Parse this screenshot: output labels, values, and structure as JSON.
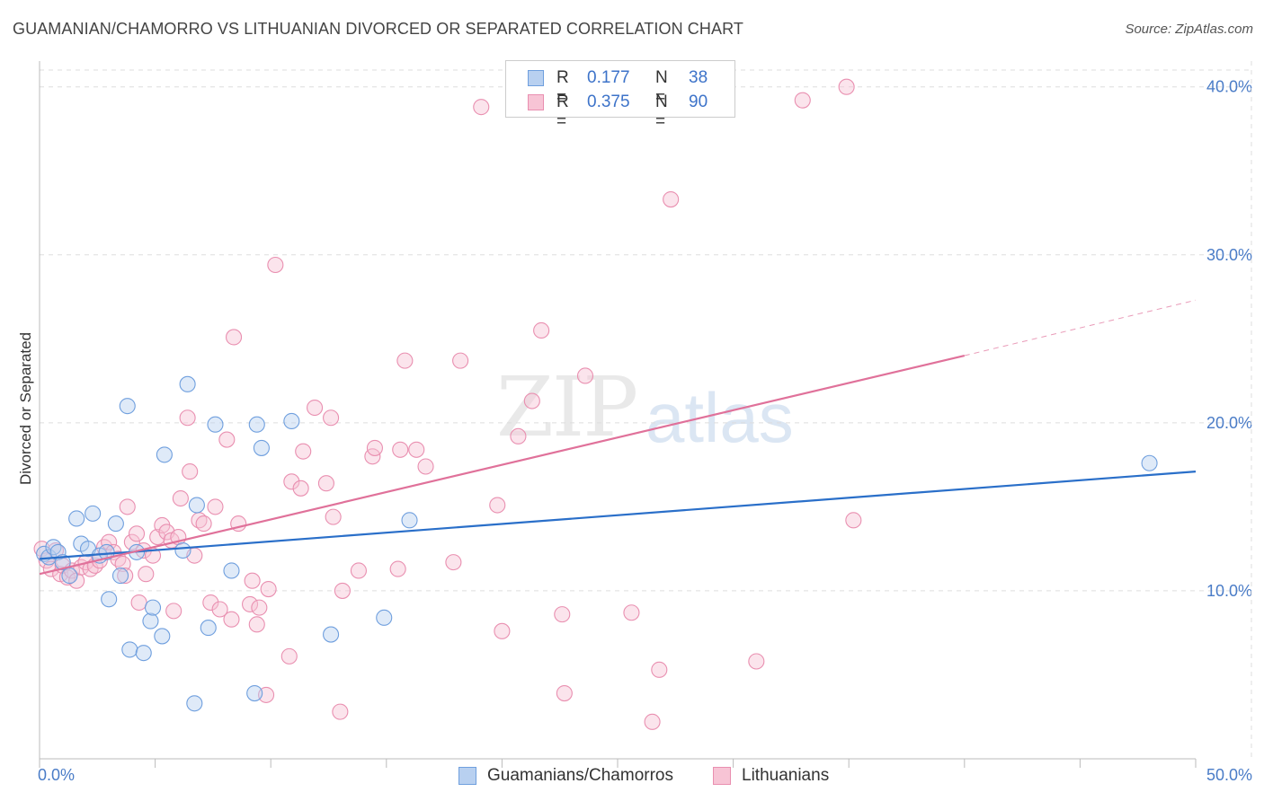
{
  "title": "GUAMANIAN/CHAMORRO VS LITHUANIAN DIVORCED OR SEPARATED CORRELATION CHART",
  "source": "Source: ZipAtlas.com",
  "watermark": {
    "zip": "ZIP",
    "atlas": "atlas"
  },
  "legend": {
    "rows": [
      {
        "r_label": "R =",
        "r_value": "0.177",
        "n_label": "N =",
        "n_value": "38"
      },
      {
        "r_label": "R =",
        "r_value": "0.375",
        "n_label": "N =",
        "n_value": "90"
      }
    ]
  },
  "bottom_legend": {
    "series1": "Guamanians/Chamorros",
    "series2": "Lithuanians"
  },
  "colors": {
    "blue_fill": "#b8d0f0",
    "blue_stroke": "#6f9fde",
    "blue_line": "#2a6fc9",
    "pink_fill": "#f7c4d5",
    "pink_stroke": "#e98fb0",
    "pink_line": "#e0719a",
    "tick_text": "#4a7cc7",
    "grid": "#dddddd"
  },
  "chart_data": {
    "type": "scatter",
    "title": "GUAMANIAN/CHAMORRO VS LITHUANIAN DIVORCED OR SEPARATED CORRELATION CHART",
    "xlabel": "",
    "ylabel": "Divorced or Separated",
    "xlim": [
      0,
      50
    ],
    "ylim": [
      0,
      41
    ],
    "x_tick_labels": [
      "0.0%",
      "50.0%"
    ],
    "y_ticks": [
      10,
      20,
      30,
      40
    ],
    "y_tick_labels": [
      "10.0%",
      "20.0%",
      "30.0%",
      "40.0%"
    ],
    "grid": true,
    "series": [
      {
        "name": "Guamanians/Chamorros",
        "R": 0.177,
        "N": 38,
        "trend": {
          "x0": 0,
          "y0": 11.9,
          "x1": 50,
          "y1": 17.1
        },
        "points": [
          [
            0.2,
            12.2
          ],
          [
            0.4,
            12.0
          ],
          [
            0.6,
            12.6
          ],
          [
            0.8,
            12.3
          ],
          [
            1.0,
            11.7
          ],
          [
            1.3,
            10.9
          ],
          [
            1.6,
            14.3
          ],
          [
            1.8,
            12.8
          ],
          [
            2.1,
            12.5
          ],
          [
            2.3,
            14.6
          ],
          [
            2.6,
            12.1
          ],
          [
            2.9,
            12.3
          ],
          [
            3.0,
            9.5
          ],
          [
            3.3,
            14.0
          ],
          [
            3.5,
            10.9
          ],
          [
            3.8,
            21.0
          ],
          [
            3.9,
            6.5
          ],
          [
            4.2,
            12.3
          ],
          [
            4.5,
            6.3
          ],
          [
            4.8,
            8.2
          ],
          [
            4.9,
            9.0
          ],
          [
            5.3,
            7.3
          ],
          [
            5.4,
            18.1
          ],
          [
            6.2,
            12.4
          ],
          [
            6.4,
            22.3
          ],
          [
            6.7,
            3.3
          ],
          [
            6.8,
            15.1
          ],
          [
            7.3,
            7.8
          ],
          [
            7.6,
            19.9
          ],
          [
            8.3,
            11.2
          ],
          [
            9.3,
            3.9
          ],
          [
            9.4,
            19.9
          ],
          [
            9.6,
            18.5
          ],
          [
            10.9,
            20.1
          ],
          [
            12.6,
            7.4
          ],
          [
            14.9,
            8.4
          ],
          [
            16.0,
            14.2
          ],
          [
            48.0,
            17.6
          ]
        ]
      },
      {
        "name": "Lithuanians",
        "R": 0.375,
        "N": 90,
        "trend": {
          "x0": 0,
          "y0": 11.0,
          "x1": 40,
          "y1": 24.0,
          "dash_x1": 50,
          "dash_y1": 27.3
        },
        "points": [
          [
            0.1,
            12.5
          ],
          [
            0.3,
            11.8
          ],
          [
            0.5,
            11.3
          ],
          [
            0.7,
            12.4
          ],
          [
            0.9,
            11.0
          ],
          [
            1.0,
            11.5
          ],
          [
            1.2,
            10.8
          ],
          [
            1.4,
            11.2
          ],
          [
            1.6,
            10.6
          ],
          [
            1.8,
            11.4
          ],
          [
            2.0,
            11.7
          ],
          [
            2.2,
            11.3
          ],
          [
            2.4,
            11.5
          ],
          [
            2.6,
            11.8
          ],
          [
            2.8,
            12.6
          ],
          [
            3.0,
            12.9
          ],
          [
            3.2,
            12.3
          ],
          [
            3.4,
            11.9
          ],
          [
            3.6,
            11.6
          ],
          [
            3.7,
            10.9
          ],
          [
            3.8,
            15.0
          ],
          [
            4.0,
            12.9
          ],
          [
            4.2,
            13.4
          ],
          [
            4.3,
            9.3
          ],
          [
            4.5,
            12.4
          ],
          [
            4.6,
            11.0
          ],
          [
            4.9,
            12.1
          ],
          [
            5.1,
            13.2
          ],
          [
            5.3,
            13.9
          ],
          [
            5.5,
            13.5
          ],
          [
            5.7,
            13.0
          ],
          [
            5.8,
            8.8
          ],
          [
            6.0,
            13.2
          ],
          [
            6.1,
            15.5
          ],
          [
            6.4,
            20.3
          ],
          [
            6.5,
            17.1
          ],
          [
            6.7,
            12.1
          ],
          [
            6.9,
            14.2
          ],
          [
            7.1,
            14.0
          ],
          [
            7.4,
            9.3
          ],
          [
            7.6,
            15.0
          ],
          [
            7.8,
            8.9
          ],
          [
            8.1,
            19.0
          ],
          [
            8.3,
            8.3
          ],
          [
            8.4,
            25.1
          ],
          [
            8.6,
            14.0
          ],
          [
            9.1,
            9.2
          ],
          [
            9.2,
            10.6
          ],
          [
            9.4,
            8.0
          ],
          [
            9.5,
            9.0
          ],
          [
            9.8,
            3.8
          ],
          [
            9.9,
            10.1
          ],
          [
            10.2,
            29.4
          ],
          [
            10.8,
            6.1
          ],
          [
            10.9,
            16.5
          ],
          [
            11.3,
            16.1
          ],
          [
            11.4,
            18.3
          ],
          [
            11.9,
            20.9
          ],
          [
            12.4,
            16.4
          ],
          [
            12.6,
            20.3
          ],
          [
            12.7,
            14.4
          ],
          [
            13.0,
            2.8
          ],
          [
            13.1,
            10.0
          ],
          [
            13.8,
            11.2
          ],
          [
            14.4,
            18.0
          ],
          [
            14.5,
            18.5
          ],
          [
            15.5,
            11.3
          ],
          [
            15.6,
            18.4
          ],
          [
            15.8,
            23.7
          ],
          [
            16.3,
            18.4
          ],
          [
            16.7,
            17.4
          ],
          [
            17.9,
            11.7
          ],
          [
            18.2,
            23.7
          ],
          [
            19.1,
            38.8
          ],
          [
            19.8,
            15.1
          ],
          [
            20.0,
            7.6
          ],
          [
            20.7,
            19.2
          ],
          [
            21.3,
            21.3
          ],
          [
            21.7,
            25.5
          ],
          [
            22.6,
            8.6
          ],
          [
            22.7,
            3.9
          ],
          [
            23.6,
            22.8
          ],
          [
            25.6,
            8.7
          ],
          [
            26.5,
            2.2
          ],
          [
            26.8,
            5.3
          ],
          [
            27.3,
            33.3
          ],
          [
            31.0,
            5.8
          ],
          [
            33.0,
            39.2
          ],
          [
            34.9,
            40.0
          ],
          [
            35.2,
            14.2
          ]
        ]
      }
    ]
  }
}
